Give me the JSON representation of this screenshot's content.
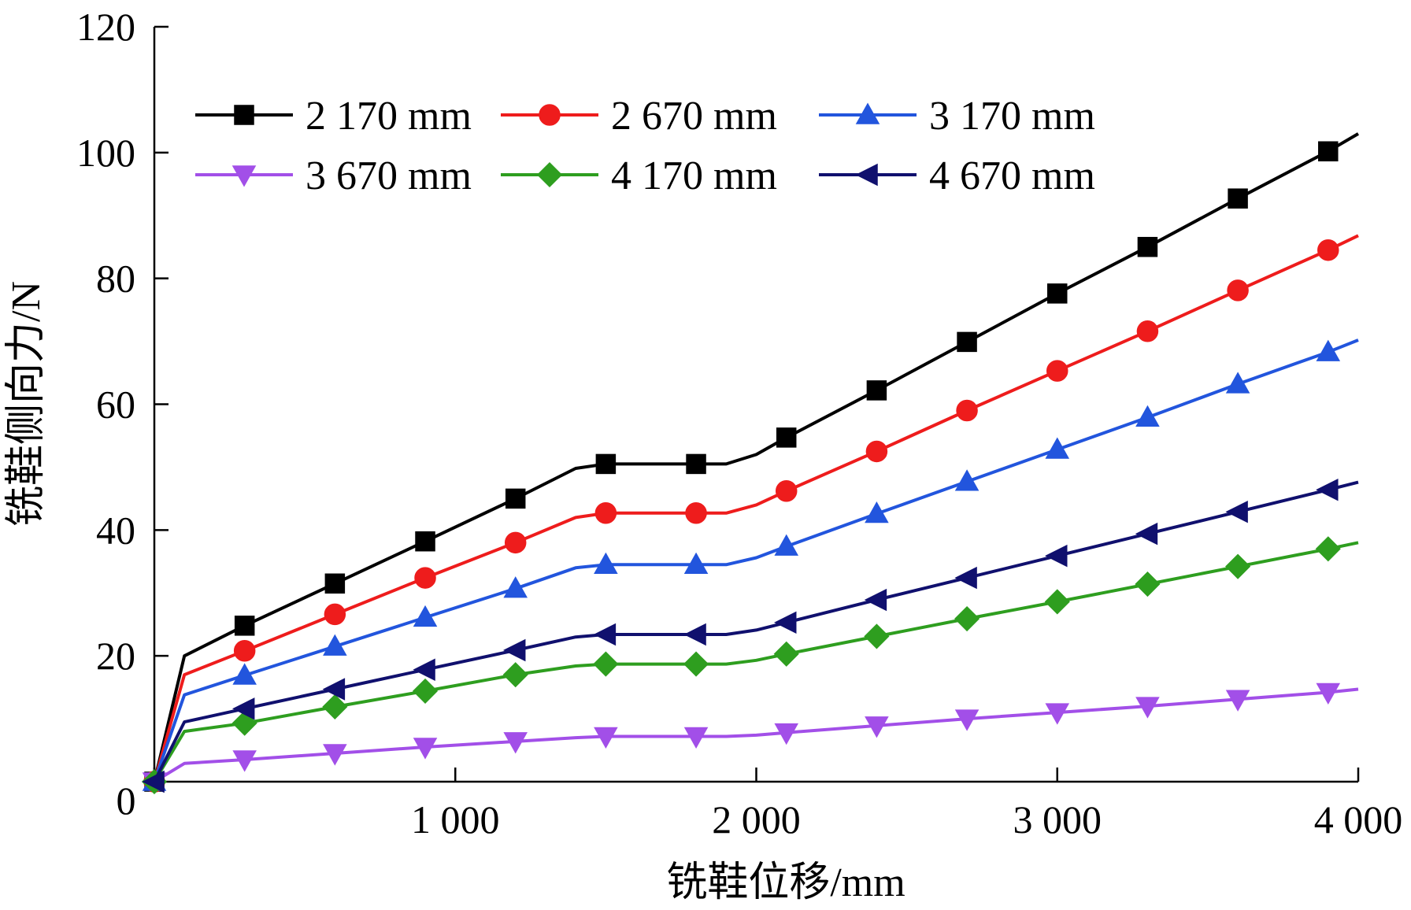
{
  "chart_data": {
    "type": "line",
    "title": "",
    "xlabel": "铣鞋位移/mm",
    "ylabel": "铣鞋侧向力/N",
    "xlim": [
      0,
      4000
    ],
    "ylim": [
      0,
      120
    ],
    "x_ticks": [
      0,
      1000,
      2000,
      3000,
      4000
    ],
    "x_tick_labels": [
      "0",
      "1 000",
      "2 000",
      "3 000",
      "4 000"
    ],
    "y_ticks": [
      20,
      40,
      60,
      80,
      100,
      120
    ],
    "y_tick_labels": [
      "20",
      "40",
      "60",
      "80",
      "100",
      "120"
    ],
    "grid": false,
    "legend_position": "top-left",
    "x": [
      0,
      100,
      300,
      600,
      900,
      1200,
      1400,
      1500,
      1800,
      1900,
      2000,
      2100,
      2400,
      2700,
      3000,
      3300,
      3600,
      3900,
      4000
    ],
    "series": [
      {
        "name": "2 170 mm",
        "color": "#000000",
        "marker": "square",
        "values": [
          0,
          20,
          24.8,
          31.5,
          38.2,
          45,
          49.8,
          50.5,
          50.5,
          50.5,
          52,
          54.7,
          62.2,
          69.9,
          77.6,
          85,
          92.7,
          100.2,
          103
        ]
      },
      {
        "name": "2 670 mm",
        "color": "#ee1c1c",
        "marker": "circle",
        "values": [
          0,
          17,
          20.8,
          26.6,
          32.4,
          38,
          42,
          42.7,
          42.7,
          42.7,
          44,
          46.2,
          52.5,
          59,
          65.3,
          71.6,
          78.1,
          84.5,
          86.8
        ]
      },
      {
        "name": "3 170 mm",
        "color": "#2255dd",
        "marker": "triangle-up",
        "values": [
          0,
          13.8,
          16.9,
          21.5,
          26.1,
          30.7,
          34,
          34.5,
          34.5,
          34.5,
          35.6,
          37.4,
          42.6,
          47.7,
          52.8,
          57.9,
          63.2,
          68.3,
          70.2
        ]
      },
      {
        "name": "3 670 mm",
        "color": "#a24fe8",
        "marker": "triangle-down",
        "values": [
          0,
          2.9,
          3.5,
          4.5,
          5.5,
          6.4,
          7,
          7.2,
          7.2,
          7.2,
          7.4,
          7.8,
          8.9,
          10,
          11,
          12,
          13.1,
          14.2,
          14.7
        ]
      },
      {
        "name": "4 170 mm",
        "color": "#2e9e1f",
        "marker": "diamond",
        "values": [
          0,
          8,
          9.3,
          11.9,
          14.4,
          17,
          18.4,
          18.7,
          18.7,
          18.7,
          19.3,
          20.3,
          23.1,
          25.9,
          28.6,
          31.4,
          34.2,
          37,
          38
        ]
      },
      {
        "name": "4 670 mm",
        "color": "#10106e",
        "marker": "triangle-left",
        "values": [
          0,
          9.5,
          11.6,
          14.7,
          17.8,
          20.9,
          23,
          23.4,
          23.4,
          23.4,
          24.1,
          25.3,
          28.9,
          32.4,
          35.9,
          39.4,
          42.9,
          46.4,
          47.6
        ]
      }
    ],
    "marker_x": [
      0,
      300,
      600,
      900,
      1200,
      1500,
      1800,
      2100,
      2400,
      2700,
      3000,
      3300,
      3600,
      3900
    ]
  }
}
